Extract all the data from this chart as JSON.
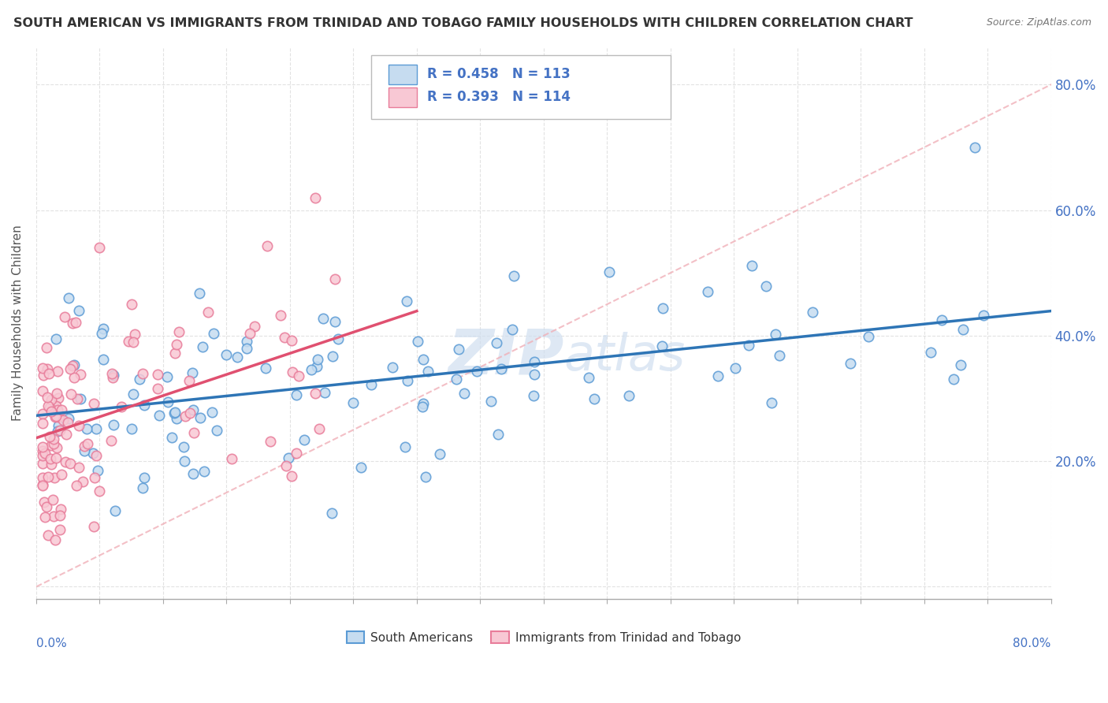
{
  "title": "SOUTH AMERICAN VS IMMIGRANTS FROM TRINIDAD AND TOBAGO FAMILY HOUSEHOLDS WITH CHILDREN CORRELATION CHART",
  "source": "Source: ZipAtlas.com",
  "ylabel": "Family Households with Children",
  "xlim": [
    0.0,
    0.8
  ],
  "ylim": [
    -0.02,
    0.86
  ],
  "yticks": [
    0.0,
    0.2,
    0.4,
    0.6,
    0.8
  ],
  "ytick_labels_right": [
    "",
    "20.0%",
    "40.0%",
    "60.0%",
    "80.0%"
  ],
  "legend_r1": "R = 0.458",
  "legend_n1": "N = 113",
  "legend_r2": "R = 0.393",
  "legend_n2": "N = 114",
  "legend_label1": "South Americans",
  "legend_label2": "Immigrants from Trinidad and Tobago",
  "color_blue_fill": "#c6dcf0",
  "color_blue_edge": "#5b9bd5",
  "color_blue_line": "#2e75b6",
  "color_pink_fill": "#f8c8d4",
  "color_pink_edge": "#e87c9a",
  "color_pink_line": "#e05070",
  "color_diag": "#f0b0b8",
  "watermark_color": "#d0dff0",
  "title_color": "#333333",
  "axis_color": "#4472c4",
  "background_color": "#ffffff",
  "grid_color": "#d0d0d0"
}
